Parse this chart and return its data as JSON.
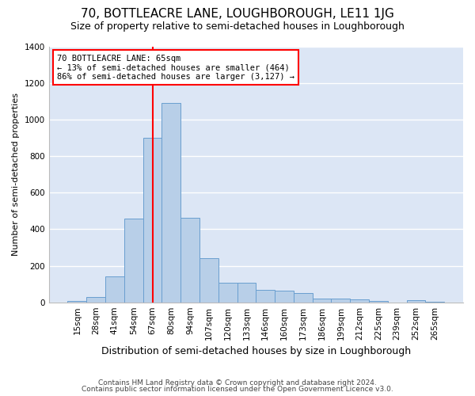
{
  "title": "70, BOTTLEACRE LANE, LOUGHBOROUGH, LE11 1JG",
  "subtitle": "Size of property relative to semi-detached houses in Loughborough",
  "xlabel": "Distribution of semi-detached houses by size in Loughborough",
  "ylabel": "Number of semi-detached properties",
  "footnote1": "Contains HM Land Registry data © Crown copyright and database right 2024.",
  "footnote2": "Contains public sector information licensed under the Open Government Licence v3.0.",
  "categories": [
    "15sqm",
    "28sqm",
    "41sqm",
    "54sqm",
    "67sqm",
    "80sqm",
    "94sqm",
    "107sqm",
    "120sqm",
    "133sqm",
    "146sqm",
    "160sqm",
    "173sqm",
    "186sqm",
    "199sqm",
    "212sqm",
    "225sqm",
    "239sqm",
    "252sqm",
    "265sqm"
  ],
  "values": [
    8,
    28,
    140,
    460,
    900,
    1090,
    465,
    240,
    108,
    108,
    68,
    65,
    52,
    20,
    20,
    15,
    8,
    0,
    10,
    5
  ],
  "bar_color": "#b8cfe8",
  "bar_edge_color": "#6a9fd0",
  "bar_edge_width": 0.7,
  "vline_x": 4.5,
  "annotation_text": "70 BOTTLEACRE LANE: 65sqm\n← 13% of semi-detached houses are smaller (464)\n86% of semi-detached houses are larger (3,127) →",
  "annotation_box_color": "white",
  "annotation_box_edge": "red",
  "vline_color": "red",
  "ylim": [
    0,
    1400
  ],
  "yticks": [
    0,
    200,
    400,
    600,
    800,
    1000,
    1200,
    1400
  ],
  "bg_color": "#dce6f5",
  "grid_color": "white",
  "title_fontsize": 11,
  "subtitle_fontsize": 9,
  "xlabel_fontsize": 9,
  "ylabel_fontsize": 8,
  "tick_fontsize": 7.5,
  "annot_fontsize": 7.5,
  "footnote_fontsize": 6.5
}
